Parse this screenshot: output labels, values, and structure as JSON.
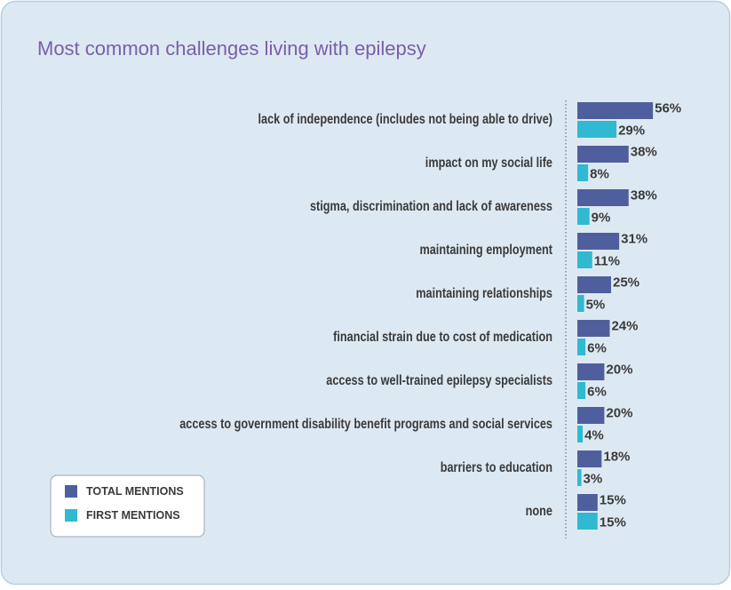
{
  "chart_data": {
    "type": "bar",
    "title": "Most common challenges living with epilepsy",
    "categories": [
      "lack of independence (includes not being able to drive)",
      "impact on my social life",
      "stigma, discrimination and lack of awareness",
      "maintaining employment",
      "maintaining relationships",
      "financial strain due to cost of medication",
      "access to well-trained epilepsy specialists",
      "access to government disability benefit programs and social services",
      "barriers to education",
      "none"
    ],
    "series": [
      {
        "name": "TOTAL MENTIONS",
        "color": "#4f5f9e",
        "values": [
          56,
          38,
          38,
          31,
          25,
          24,
          20,
          20,
          18,
          15
        ],
        "value_labels": [
          "56%",
          "38%",
          "38%",
          "31%",
          "25%",
          "24%",
          "20%",
          "20%",
          "18%",
          "15%"
        ]
      },
      {
        "name": "FIRST MENTIONS",
        "color": "#31b9d1",
        "values": [
          29,
          8,
          9,
          11,
          5,
          6,
          6,
          4,
          3,
          15
        ],
        "value_labels": [
          "29%",
          "8%",
          "9%",
          "11%",
          "5%",
          "6%",
          "6%",
          "4%",
          "3%",
          "15%"
        ]
      }
    ],
    "orientation": "horizontal"
  }
}
